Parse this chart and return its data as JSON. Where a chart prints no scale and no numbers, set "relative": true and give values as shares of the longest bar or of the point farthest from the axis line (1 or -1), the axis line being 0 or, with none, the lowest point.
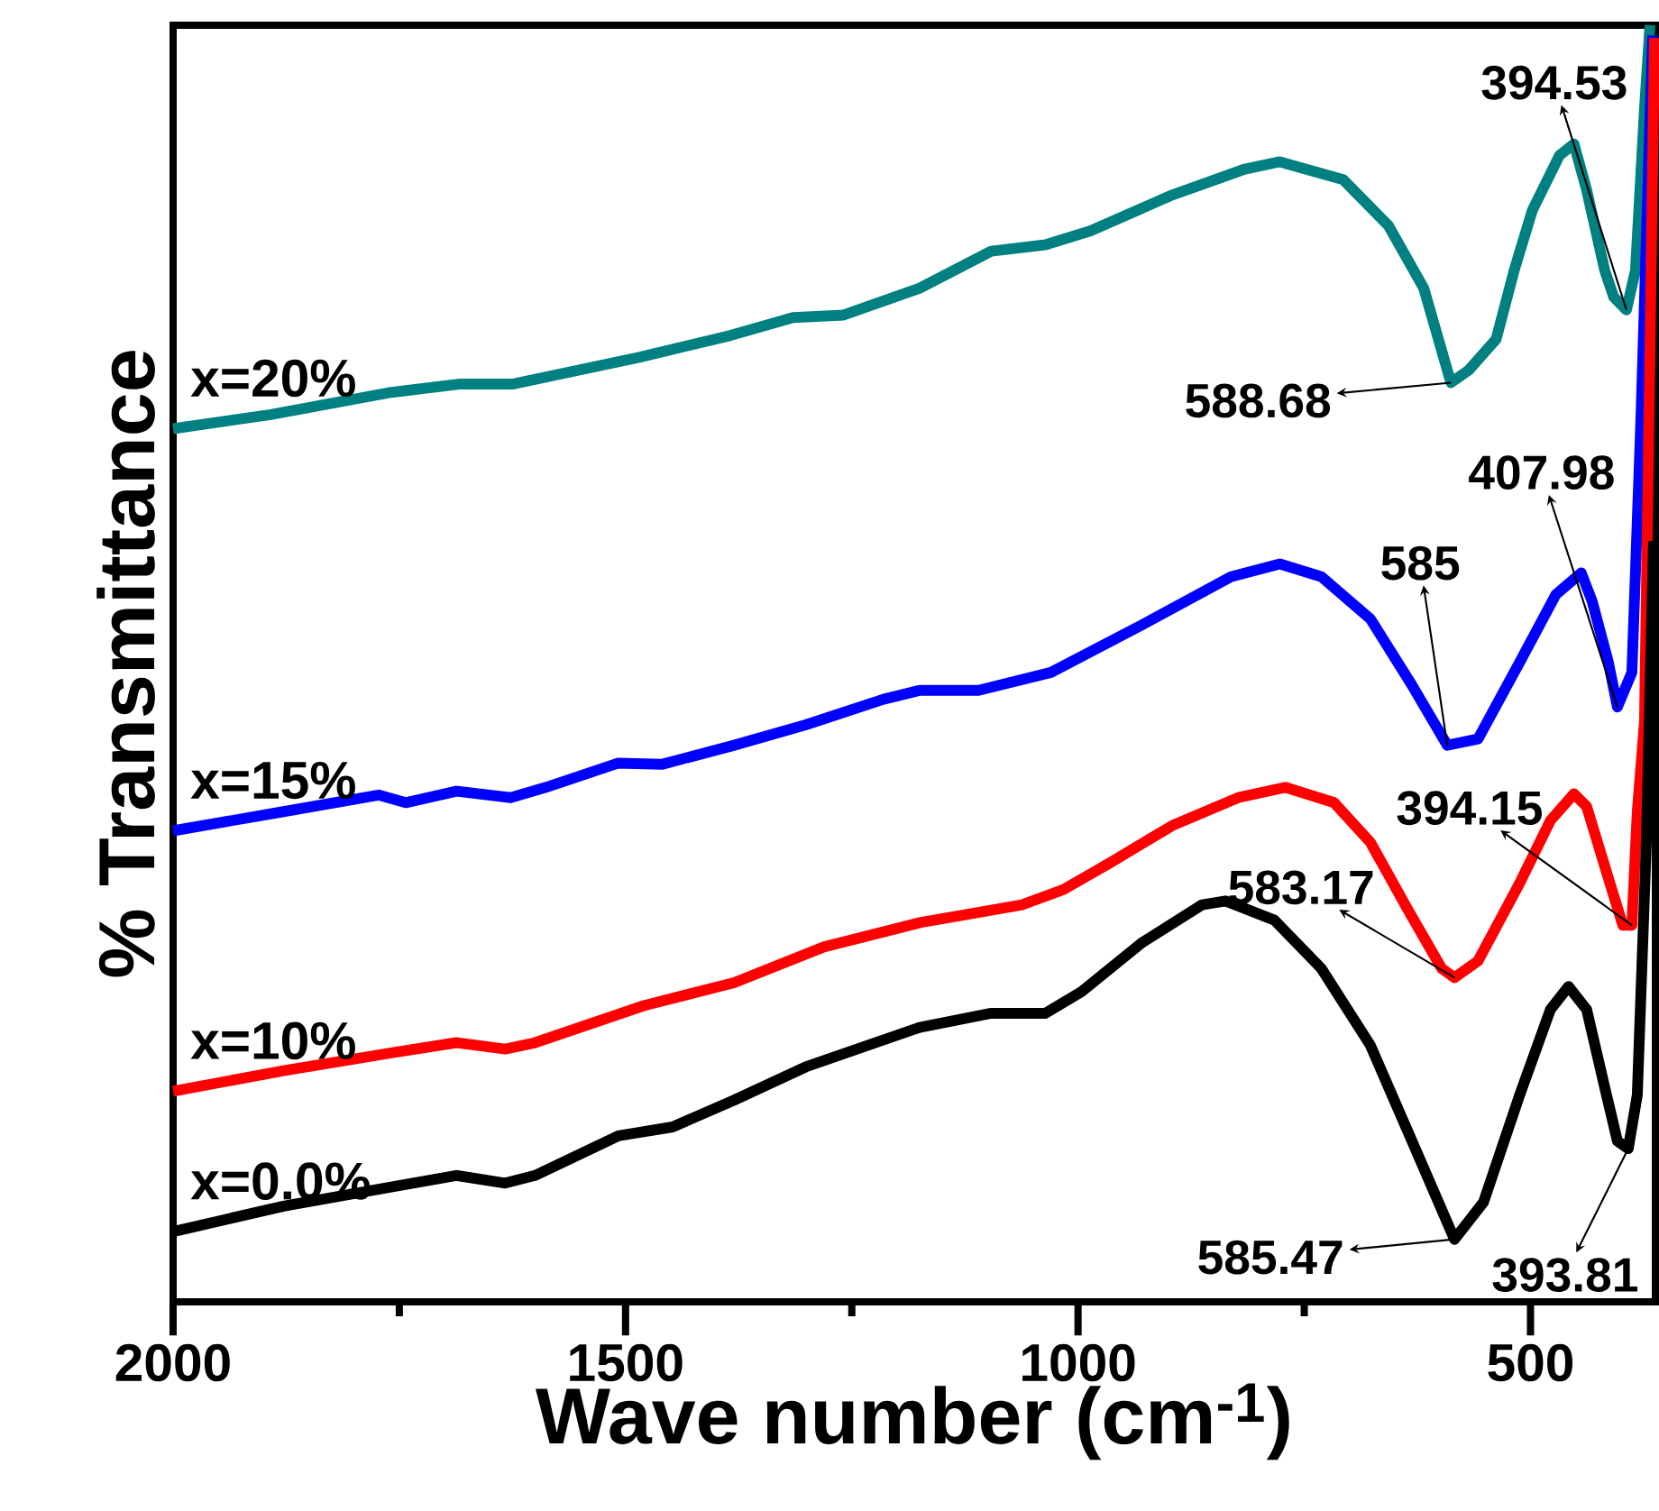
{
  "chart_data": {
    "type": "line",
    "relative": true,
    "xlabel": "Wave number (cm$^{-1}$)",
    "ylabel": "% Transmittance",
    "xlim": [
      2000,
      362
    ],
    "xticks": [
      2000,
      1500,
      1000,
      500
    ],
    "series": [
      {
        "name": "x=20%",
        "color": "#008080",
        "x": [
          2000,
          1892,
          1763,
          1683,
          1624,
          1484,
          1384,
          1315,
          1259,
          1175,
          1096,
          1036,
          986,
          896,
          817,
          777,
          707,
          657,
          618,
          588,
          568,
          538,
          518,
          498,
          468,
          452,
          438,
          418,
          408,
          394,
          384,
          374,
          368
        ],
        "values": [
          0.684,
          0.695,
          0.712,
          0.719,
          0.719,
          0.74,
          0.757,
          0.771,
          0.773,
          0.794,
          0.823,
          0.828,
          0.839,
          0.867,
          0.887,
          0.893,
          0.879,
          0.843,
          0.794,
          0.72,
          0.73,
          0.754,
          0.808,
          0.855,
          0.898,
          0.907,
          0.871,
          0.808,
          0.787,
          0.777,
          0.808,
          0.935,
          1.0
        ]
      },
      {
        "name": "x=15%",
        "color": "#0000ff",
        "x": [
          2000,
          1878,
          1773,
          1743,
          1687,
          1627,
          1588,
          1508,
          1460,
          1380,
          1301,
          1215,
          1175,
          1110,
          1030,
          930,
          831,
          777,
          731,
          677,
          631,
          592,
          558,
          512,
          472,
          444,
          432,
          414,
          404,
          388,
          378,
          369,
          365
        ],
        "values": [
          0.369,
          0.384,
          0.397,
          0.391,
          0.4,
          0.395,
          0.403,
          0.422,
          0.421,
          0.436,
          0.452,
          0.472,
          0.479,
          0.479,
          0.493,
          0.53,
          0.568,
          0.578,
          0.568,
          0.535,
          0.483,
          0.436,
          0.441,
          0.501,
          0.554,
          0.571,
          0.549,
          0.501,
          0.466,
          0.493,
          0.691,
          0.903,
          0.992
        ]
      },
      {
        "name": "x=10%",
        "color": "#ff0000",
        "x": [
          2000,
          1878,
          1759,
          1687,
          1633,
          1600,
          1480,
          1380,
          1281,
          1175,
          1062,
          1016,
          962,
          896,
          823,
          771,
          717,
          677,
          637,
          598,
          584,
          558,
          512,
          478,
          452,
          438,
          414,
          398,
          388,
          382,
          374,
          363
        ],
        "values": [
          0.165,
          0.181,
          0.195,
          0.203,
          0.198,
          0.203,
          0.232,
          0.25,
          0.278,
          0.297,
          0.311,
          0.323,
          0.345,
          0.373,
          0.395,
          0.403,
          0.391,
          0.36,
          0.309,
          0.261,
          0.254,
          0.267,
          0.328,
          0.377,
          0.398,
          0.388,
          0.332,
          0.295,
          0.295,
          0.384,
          0.455,
          0.99
        ]
      },
      {
        "name": "x=0.0%",
        "color": "#000000",
        "x": [
          2000,
          1878,
          1759,
          1687,
          1633,
          1600,
          1508,
          1448,
          1380,
          1301,
          1175,
          1096,
          1036,
          996,
          930,
          863,
          837,
          783,
          731,
          677,
          631,
          584,
          552,
          512,
          478,
          458,
          438,
          418,
          404,
          392,
          382,
          372,
          364
        ],
        "values": [
          0.055,
          0.075,
          0.09,
          0.099,
          0.093,
          0.099,
          0.13,
          0.137,
          0.158,
          0.184,
          0.215,
          0.226,
          0.226,
          0.243,
          0.281,
          0.311,
          0.314,
          0.299,
          0.261,
          0.201,
          0.126,
          0.049,
          0.078,
          0.162,
          0.229,
          0.247,
          0.229,
          0.168,
          0.126,
          0.12,
          0.162,
          0.36,
          0.596
        ]
      }
    ],
    "annotations": [
      {
        "text": "394.53",
        "x": 394,
        "y": 0.777
      },
      {
        "text": "588.68",
        "x": 588,
        "y": 0.72
      },
      {
        "text": "407.98",
        "x": 404,
        "y": 0.466
      },
      {
        "text": "585",
        "x": 592,
        "y": 0.436
      },
      {
        "text": "394.15",
        "x": 388,
        "y": 0.295
      },
      {
        "text": "583.17",
        "x": 584,
        "y": 0.254
      },
      {
        "text": "585.47",
        "x": 584,
        "y": 0.049
      },
      {
        "text": "393.81",
        "x": 392,
        "y": 0.12
      }
    ]
  }
}
